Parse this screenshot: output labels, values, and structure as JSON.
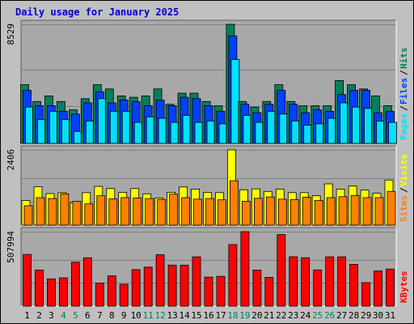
{
  "chart_data": {
    "type": "bar",
    "title": "Daily usage for January 2025",
    "colors": {
      "background": "#c0c0c0",
      "plot": "#a8a8a8",
      "title": "#0000cc",
      "hits": "#00805a",
      "files": "#0040ff",
      "pages": "#00e0ff",
      "visits": "#ffff00",
      "sites": "#ff8000",
      "kbytes": "#ff0000",
      "weekend_label": "#008060"
    },
    "categories": [
      "1",
      "2",
      "3",
      "4",
      "5",
      "6",
      "7",
      "8",
      "9",
      "10",
      "11",
      "12",
      "13",
      "14",
      "15",
      "16",
      "17",
      "18",
      "19",
      "20",
      "21",
      "22",
      "23",
      "24",
      "25",
      "26",
      "27",
      "28",
      "29",
      "30",
      "31"
    ],
    "weekend_days": [
      "4",
      "5",
      "11",
      "12",
      "18",
      "19",
      "25",
      "26"
    ],
    "panels": [
      {
        "name": "hits-files-pages",
        "ymax": 8529,
        "ymax_label": "8529",
        "legend": [
          "Pages",
          "Files",
          "Hits"
        ],
        "series": [
          {
            "name": "Hits",
            "color": "#00805a",
            "values": [
              4200,
              3000,
              3400,
              3000,
              2400,
              3200,
              4200,
              3900,
              3400,
              3300,
              3400,
              3900,
              2800,
              3600,
              3600,
              3000,
              2700,
              8529,
              3000,
              2600,
              3000,
              4200,
              3000,
              2700,
              2700,
              2700,
              4500,
              4200,
              3900,
              3400,
              2700
            ]
          },
          {
            "name": "Files",
            "color": "#0040ff",
            "values": [
              3800,
              2700,
              2700,
              2300,
              2100,
              2900,
              3700,
              2900,
              3100,
              3000,
              2700,
              3100,
              2700,
              3300,
              3200,
              2700,
              2300,
              7700,
              2800,
              2200,
              2800,
              3800,
              2800,
              2200,
              2400,
              2300,
              3500,
              3800,
              3800,
              2200,
              2300
            ]
          },
          {
            "name": "Pages",
            "color": "#00e0ff",
            "values": [
              2600,
              1700,
              2300,
              1700,
              850,
              1600,
              3200,
              2300,
              2300,
              1500,
              1900,
              1800,
              1500,
              2000,
              1500,
              1600,
              1400,
              6000,
              2000,
              1500,
              2300,
              2100,
              1600,
              1300,
              1400,
              1800,
              2900,
              2600,
              2500,
              1600,
              1500
            ]
          }
        ]
      },
      {
        "name": "visits-sites",
        "ymax": 2406,
        "ymax_label": "2406",
        "legend": [
          "Sites",
          "Visits"
        ],
        "series": [
          {
            "name": "Visits",
            "color": "#ffff00",
            "values": [
              790,
              1230,
              1010,
              1040,
              720,
              1040,
              1240,
              1170,
              1050,
              1170,
              1000,
              870,
              1050,
              1220,
              1150,
              1050,
              1040,
              2406,
              1130,
              1160,
              1080,
              1150,
              1040,
              1040,
              940,
              1320,
              1150,
              1250,
              1120,
              1020,
              1440
            ]
          },
          {
            "name": "Sites",
            "color": "#ff8000",
            "values": [
              620,
              880,
              850,
              1000,
              760,
              680,
              940,
              840,
              880,
              870,
              850,
              820,
              990,
              880,
              830,
              850,
              810,
              1420,
              760,
              860,
              900,
              830,
              820,
              890,
              790,
              880,
              910,
              950,
              880,
              880,
              1080
            ]
          }
        ]
      },
      {
        "name": "kbytes",
        "ymax": 507994,
        "ymax_label": "507994",
        "legend": [
          "KBytes"
        ],
        "series": [
          {
            "name": "KBytes",
            "color": "#ff0000",
            "values": [
              353000,
              246000,
              186000,
              193000,
              300000,
              330000,
              158000,
              207000,
              149000,
              249000,
              266000,
              351000,
              280000,
              280000,
              336000,
              198000,
              203000,
              420000,
              507994,
              246000,
              196000,
              488000,
              337000,
              330000,
              247000,
              336000,
              336000,
              285000,
              160000,
              240000,
              253000
            ]
          }
        ]
      }
    ]
  }
}
